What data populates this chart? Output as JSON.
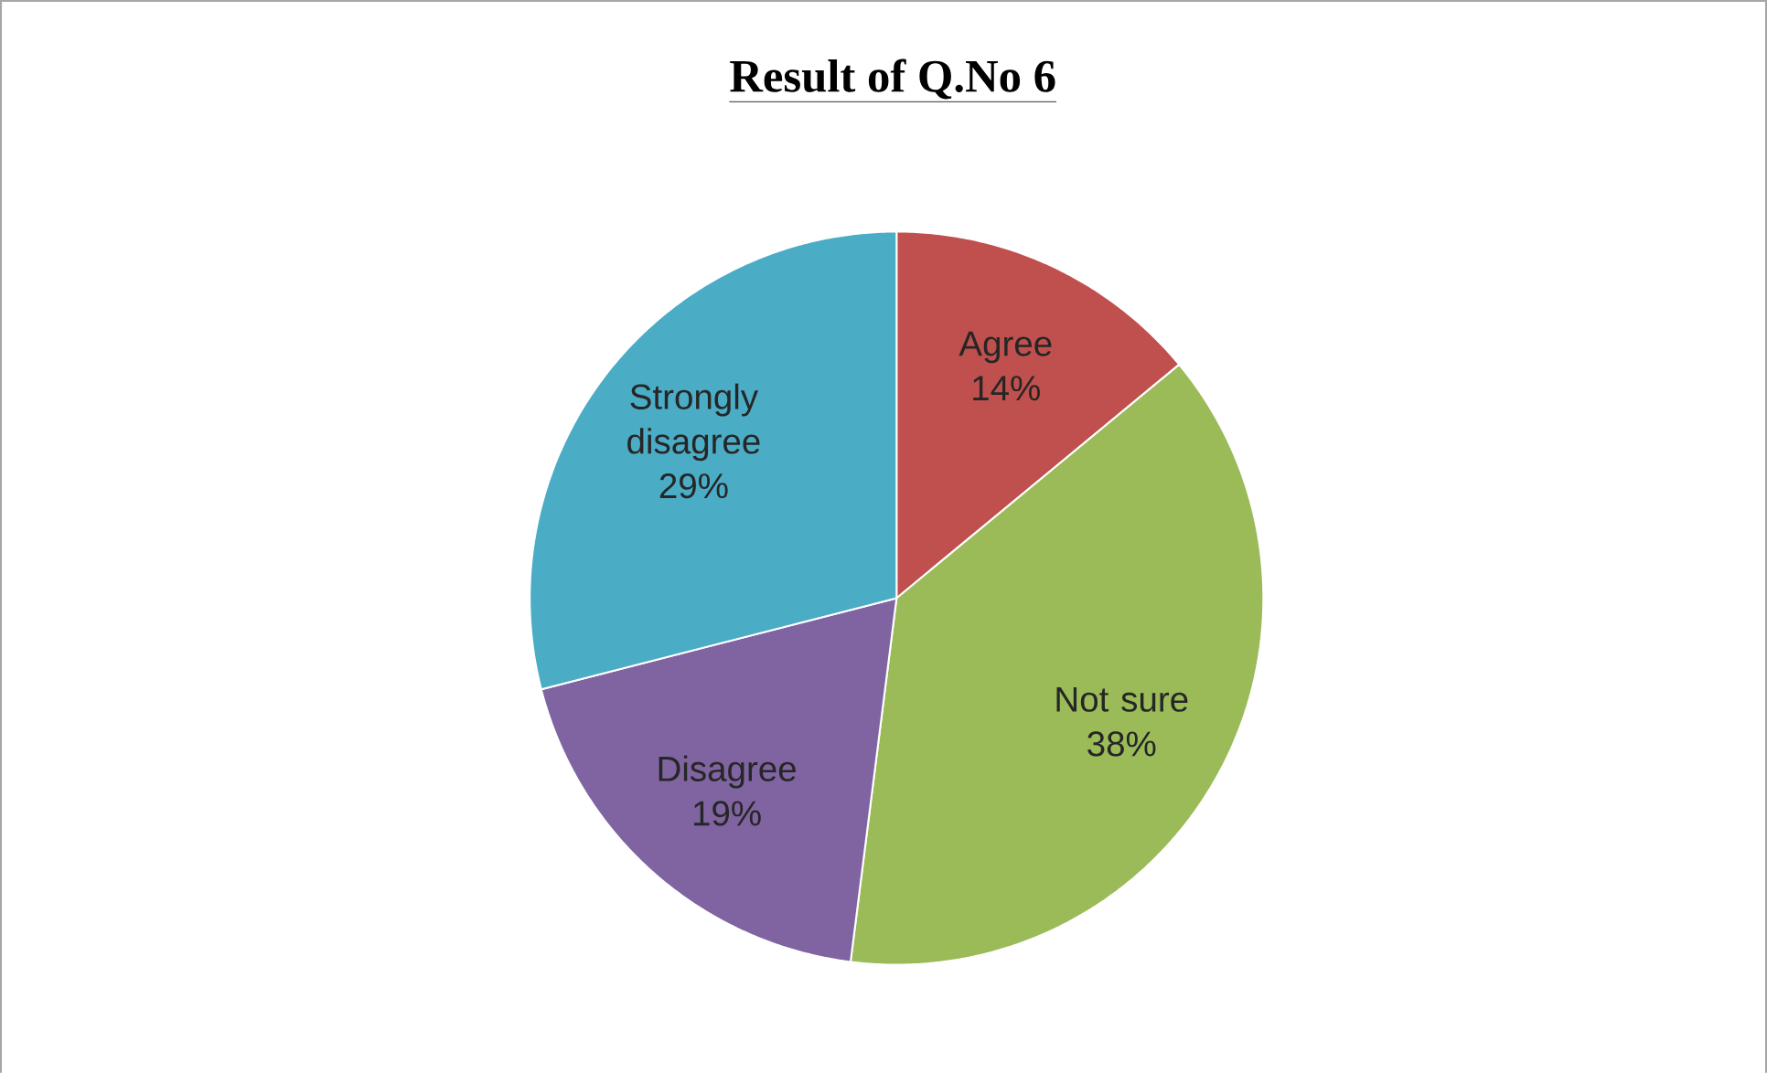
{
  "chart_data": {
    "type": "pie",
    "title": "Result of Q.No 6",
    "categories": [
      "Agree",
      "Not sure",
      "Disagree",
      "Strongly disagree"
    ],
    "values": [
      14,
      38,
      19,
      29
    ],
    "value_labels": [
      "14%",
      "38%",
      "19%",
      "29%"
    ],
    "colors": [
      "#c0504d",
      "#9bbb59",
      "#8064a2",
      "#4bacc6"
    ]
  }
}
